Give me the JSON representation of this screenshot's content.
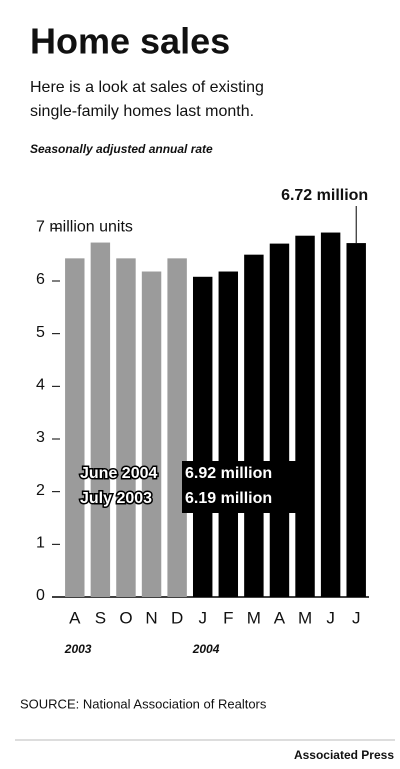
{
  "chart_data": {
    "type": "bar",
    "title": "Home sales",
    "subtitle": [
      "Here is a look at sales of existing",
      "single-family homes last month."
    ],
    "note": "Seasonally adjusted annual rate",
    "source": "SOURCE: National Association of Realtors",
    "credit": "Associated Press",
    "categories": [
      "A",
      "S",
      "O",
      "N",
      "D",
      "J",
      "F",
      "M",
      "A",
      "M",
      "J",
      "J"
    ],
    "values": [
      6.43,
      6.73,
      6.43,
      6.18,
      6.43,
      6.08,
      6.18,
      6.5,
      6.71,
      6.86,
      6.92,
      6.72
    ],
    "value_labels": [
      null,
      null,
      null,
      null,
      null,
      null,
      null,
      null,
      null,
      null,
      null,
      "6.72 million"
    ],
    "colors": [
      "#9b9b9b",
      "#9b9b9b",
      "#9b9b9b",
      "#9b9b9b",
      "#9b9b9b",
      "#000000",
      "#000000",
      "#000000",
      "#000000",
      "#000000",
      "#000000",
      "#000000"
    ],
    "year_labels": [
      {
        "text": "2003",
        "index": 0
      },
      {
        "text": "2004",
        "index": 5
      }
    ],
    "callout": [
      {
        "label": "June 2004",
        "value": "6.92 million"
      },
      {
        "label": "July 2003",
        "value": "6.19 million"
      }
    ],
    "ylim": [
      0,
      7.5
    ],
    "yticks": [
      0,
      1,
      2,
      3,
      4,
      5,
      6,
      {
        "value": 7,
        "label": "7 million units"
      }
    ],
    "grid": false
  }
}
